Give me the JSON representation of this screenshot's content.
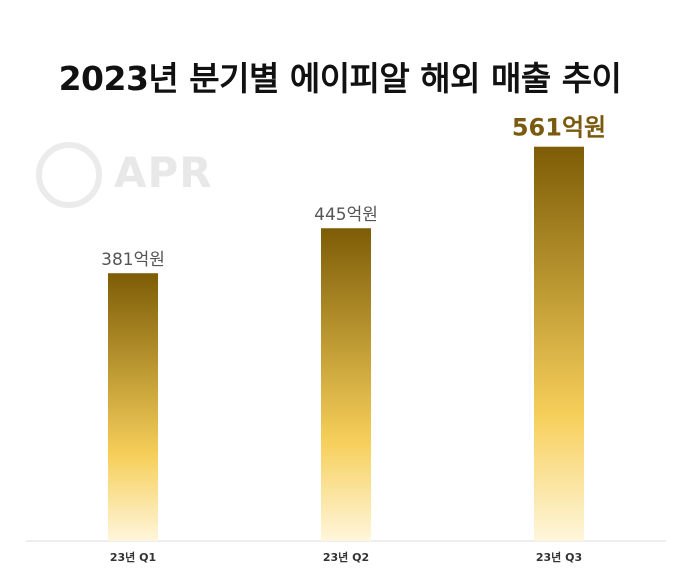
{
  "chart_data": {
    "type": "bar",
    "title": "2023년 분기별 에이피알 해외 매출 추이",
    "categories": [
      "23년 Q1",
      "23년 Q2",
      "23년 Q3"
    ],
    "values": [
      381,
      445,
      561
    ],
    "value_labels": [
      "381억원",
      "445억원",
      "561억원"
    ],
    "highlight_index": 2,
    "ylim": [
      0,
      599
    ],
    "grid": false,
    "xlabel": "",
    "ylabel": ""
  },
  "watermark": {
    "text": "APR",
    "icon": "ring-logo-icon"
  },
  "colors": {
    "bar_top": "#7d5c06",
    "bar_mid": "#f6cf5a",
    "bar_bottom": "#fff6dc",
    "highlight_label": "#7a5a0f",
    "baseline": "#dddddd"
  }
}
